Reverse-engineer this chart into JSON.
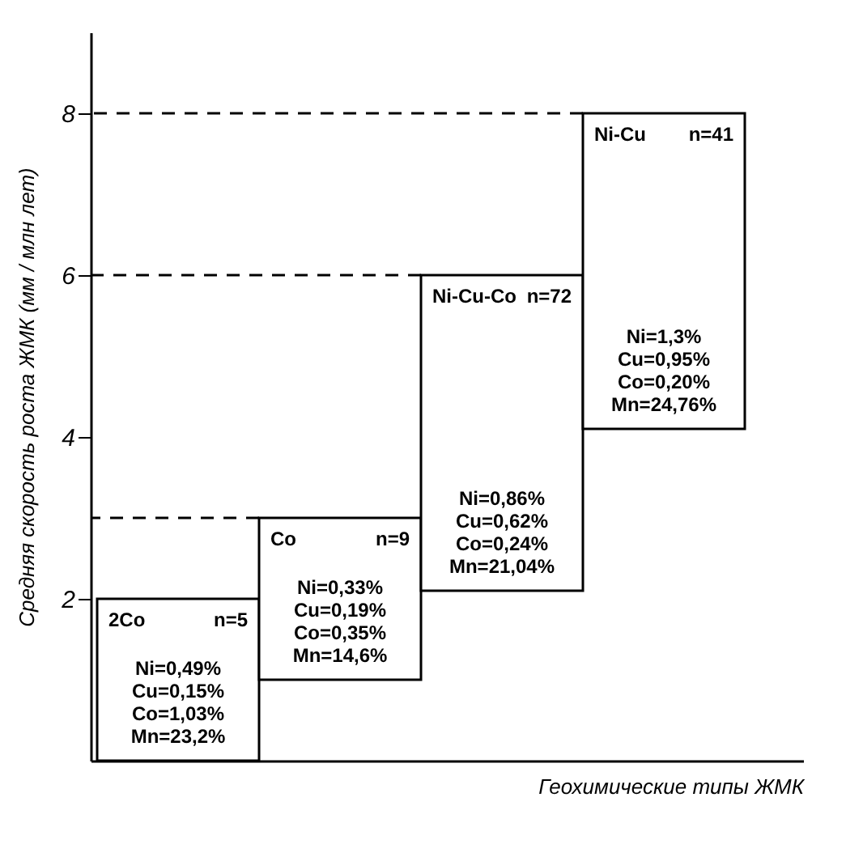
{
  "chart_data": {
    "type": "bar",
    "ylabel": "Средняя   скорость роста ЖМК   (мм / млн лет)",
    "xlabel": "Геохимические типы ЖМК",
    "categories": [
      "2Co",
      "Co",
      "Ni-Cu-Co",
      "Ni-Cu"
    ],
    "base": [
      0,
      1,
      2.1,
      4.1
    ],
    "values": [
      2,
      2,
      3.9,
      3.9
    ],
    "color": "#ffffff",
    "ylim": [
      0,
      9
    ],
    "yticks": [
      2,
      4,
      6,
      8
    ],
    "tick_labels": "y",
    "grid": false,
    "ref_lines": [
      {
        "axis": "y",
        "value": 3,
        "color": "#000000",
        "line_style": "dashed"
      },
      {
        "axis": "y",
        "value": 6,
        "color": "#000000",
        "line_style": "dashed"
      },
      {
        "axis": "y",
        "value": 8,
        "color": "#000000",
        "line_style": "dashed"
      }
    ],
    "annotations": [
      "n=5",
      "Ni=0,49%\nCu=0,15%\nCo=1,03%\nMn=23,2%",
      "n=9",
      "Ni=0,33%\nCu=0,19%\nCo=0,35%\nMn=14,6%",
      "n=72",
      "Ni=0,86%\nCu=0,62%\nCo=0,24%\nMn=21,04%",
      "n=41",
      "Ni=1,3%\nCu=0,95%\nCo=0,20%\nMn=24,76%"
    ]
  }
}
